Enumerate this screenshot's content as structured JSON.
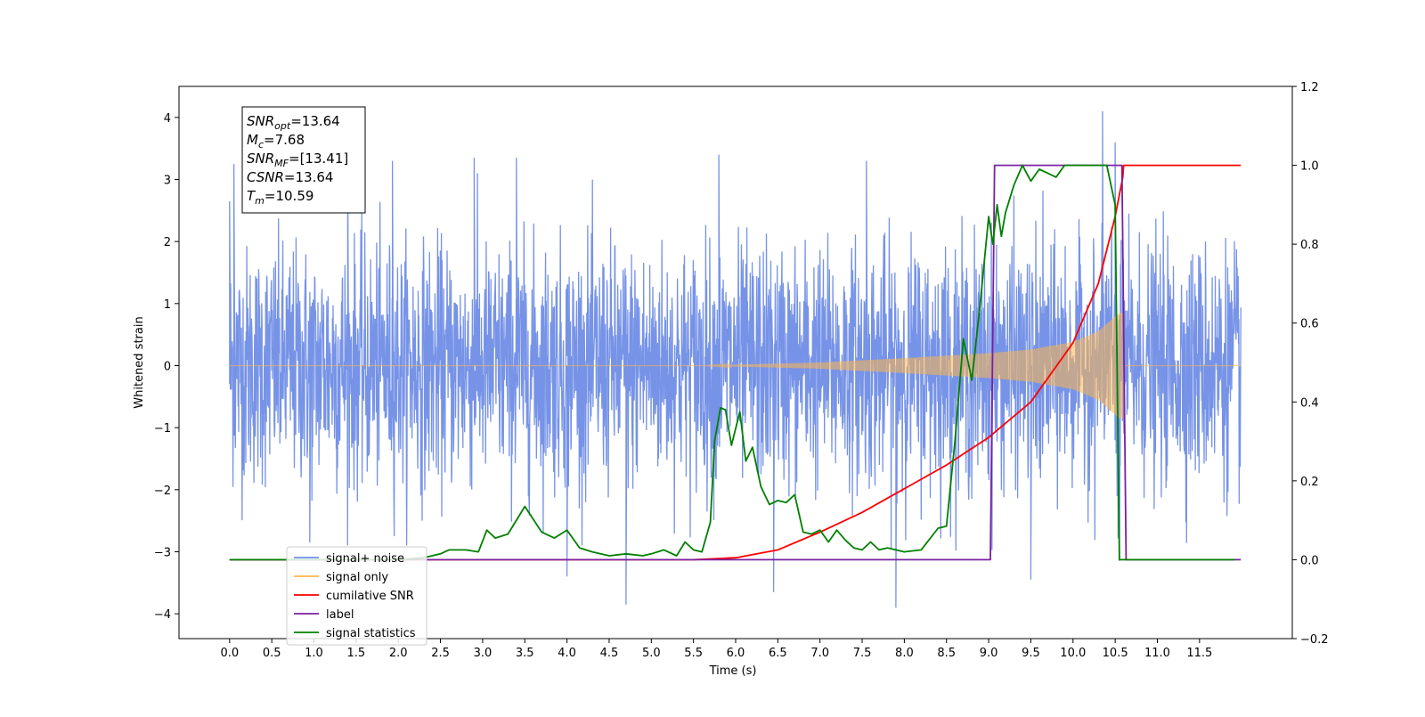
{
  "chart_data": {
    "type": "line",
    "xlabel": "Time (s)",
    "ylabel": "Whitened strain",
    "xlim": [
      -0.6,
      12.6
    ],
    "ylim": [
      -4.4,
      4.5
    ],
    "y2lim": [
      -0.2,
      1.2
    ],
    "xticks": [
      "0.0",
      "0.5",
      "1.0",
      "1.5",
      "2.0",
      "2.5",
      "3.0",
      "3.5",
      "4.0",
      "4.5",
      "5.0",
      "5.5",
      "6.0",
      "6.5",
      "7.0",
      "7.5",
      "8.0",
      "8.5",
      "9.0",
      "9.5",
      "10.0",
      "10.5",
      "11.0",
      "11.5"
    ],
    "yticks": [
      "4",
      "3",
      "2",
      "1",
      "0",
      "−1",
      "−2",
      "−3",
      "−4"
    ],
    "y2ticks": [
      "1.2",
      "1.0",
      "0.8",
      "0.6",
      "0.4",
      "0.2",
      "0.0",
      "−0.2"
    ],
    "grid": false,
    "legend_placement": "lower-left",
    "annotation": {
      "lines": [
        {
          "main": "SNR",
          "sub": "opt",
          "value": "=13.64"
        },
        {
          "main": "M",
          "sub": "c",
          "value": "=7.68"
        },
        {
          "main": "SNR",
          "sub": "MF",
          "value": "=[13.41]"
        },
        {
          "main": "CSNR",
          "sub": "",
          "value": "=13.64"
        },
        {
          "main": "T",
          "sub": "m",
          "value": "=10.59"
        }
      ]
    },
    "series": [
      {
        "name": "signal+ noise",
        "axis": "left",
        "color": "#6f8de6",
        "x_range": [
          0.0,
          11.99
        ],
        "noise_sigma": 1.0,
        "y_extremes": [
          {
            "x": 0.0,
            "y": 2.65
          },
          {
            "x": 0.05,
            "y": 3.25
          },
          {
            "x": 1.4,
            "y": 3.3
          },
          {
            "x": 1.93,
            "y": 3.3
          },
          {
            "x": 2.9,
            "y": 3.35
          },
          {
            "x": 3.4,
            "y": 3.35
          },
          {
            "x": 5.8,
            "y": 3.4
          },
          {
            "x": 7.55,
            "y": 3.3
          },
          {
            "x": 10.35,
            "y": 4.1
          },
          {
            "x": 10.5,
            "y": 3.6
          },
          {
            "x": 0.95,
            "y": -2.85
          },
          {
            "x": 4.0,
            "y": -3.4
          },
          {
            "x": 4.7,
            "y": -3.85
          },
          {
            "x": 6.45,
            "y": -3.65
          },
          {
            "x": 7.9,
            "y": -3.9
          },
          {
            "x": 9.5,
            "y": -3.45
          },
          {
            "x": 10.55,
            "y": -3.15
          }
        ]
      },
      {
        "name": "signal only",
        "axis": "left",
        "color": "#ffb74d",
        "chirp_start": 5.6,
        "chirp_end": 10.59,
        "amplitude_at_x": [
          {
            "x": 5.6,
            "a": 0.0
          },
          {
            "x": 7.0,
            "a": 0.05
          },
          {
            "x": 8.0,
            "a": 0.12
          },
          {
            "x": 9.0,
            "a": 0.2
          },
          {
            "x": 9.5,
            "a": 0.26
          },
          {
            "x": 10.0,
            "a": 0.38
          },
          {
            "x": 10.3,
            "a": 0.55
          },
          {
            "x": 10.55,
            "a": 0.85
          }
        ]
      },
      {
        "name": "cumilative SNR",
        "axis": "right",
        "color": "#ff0000",
        "x": [
          0.0,
          5.5,
          6.0,
          6.5,
          7.0,
          7.5,
          8.0,
          8.5,
          9.0,
          9.5,
          10.0,
          10.3,
          10.5,
          10.59,
          10.6,
          11.99
        ],
        "y": [
          0.0,
          0.0,
          0.005,
          0.025,
          0.07,
          0.12,
          0.18,
          0.24,
          0.31,
          0.4,
          0.55,
          0.7,
          0.87,
          0.97,
          1.0,
          1.0
        ]
      },
      {
        "name": "label",
        "axis": "right",
        "color": "#7b1fa2",
        "x": [
          0.0,
          9.02,
          9.07,
          10.58,
          10.63,
          11.99
        ],
        "y": [
          0.0,
          0.0,
          1.0,
          1.0,
          0.0,
          0.0
        ]
      },
      {
        "name": "signal statistics",
        "axis": "right",
        "color": "#008000",
        "x": [
          0.0,
          2.0,
          2.3,
          2.5,
          2.6,
          2.8,
          2.95,
          3.05,
          3.15,
          3.3,
          3.5,
          3.7,
          3.85,
          4.0,
          4.15,
          4.3,
          4.5,
          4.7,
          4.9,
          5.0,
          5.15,
          5.3,
          5.4,
          5.5,
          5.6,
          5.7,
          5.75,
          5.82,
          5.88,
          5.95,
          6.05,
          6.12,
          6.2,
          6.3,
          6.4,
          6.5,
          6.6,
          6.7,
          6.8,
          6.9,
          7.0,
          7.1,
          7.2,
          7.3,
          7.4,
          7.5,
          7.6,
          7.7,
          7.8,
          8.0,
          8.2,
          8.4,
          8.5,
          8.6,
          8.7,
          8.8,
          8.9,
          9.0,
          9.05,
          9.1,
          9.15,
          9.2,
          9.3,
          9.4,
          9.5,
          9.6,
          9.7,
          9.8,
          9.9,
          10.0,
          10.1,
          10.2,
          10.3,
          10.4,
          10.5,
          10.55,
          10.62,
          11.92
        ],
        "y": [
          0.0,
          0.0,
          0.005,
          0.015,
          0.025,
          0.025,
          0.02,
          0.075,
          0.055,
          0.065,
          0.135,
          0.07,
          0.055,
          0.075,
          0.03,
          0.02,
          0.01,
          0.015,
          0.01,
          0.015,
          0.025,
          0.01,
          0.045,
          0.025,
          0.02,
          0.095,
          0.3,
          0.385,
          0.38,
          0.29,
          0.375,
          0.25,
          0.285,
          0.185,
          0.14,
          0.15,
          0.145,
          0.165,
          0.07,
          0.065,
          0.075,
          0.045,
          0.075,
          0.05,
          0.03,
          0.025,
          0.045,
          0.025,
          0.03,
          0.02,
          0.025,
          0.08,
          0.085,
          0.3,
          0.56,
          0.455,
          0.65,
          0.87,
          0.8,
          0.9,
          0.82,
          0.88,
          0.95,
          1.0,
          0.96,
          0.99,
          0.98,
          0.97,
          1.0,
          1.0,
          1.0,
          1.0,
          1.0,
          1.0,
          0.9,
          0.0,
          0.0,
          0.0
        ]
      }
    ],
    "legend_entries": [
      {
        "label": "signal+ noise",
        "color": "#6f8de6"
      },
      {
        "label": "signal only",
        "color": "#ffb74d"
      },
      {
        "label": "cumilative SNR",
        "color": "#ff0000"
      },
      {
        "label": "label",
        "color": "#7b1fa2"
      },
      {
        "label": "signal statistics",
        "color": "#008000"
      }
    ]
  }
}
